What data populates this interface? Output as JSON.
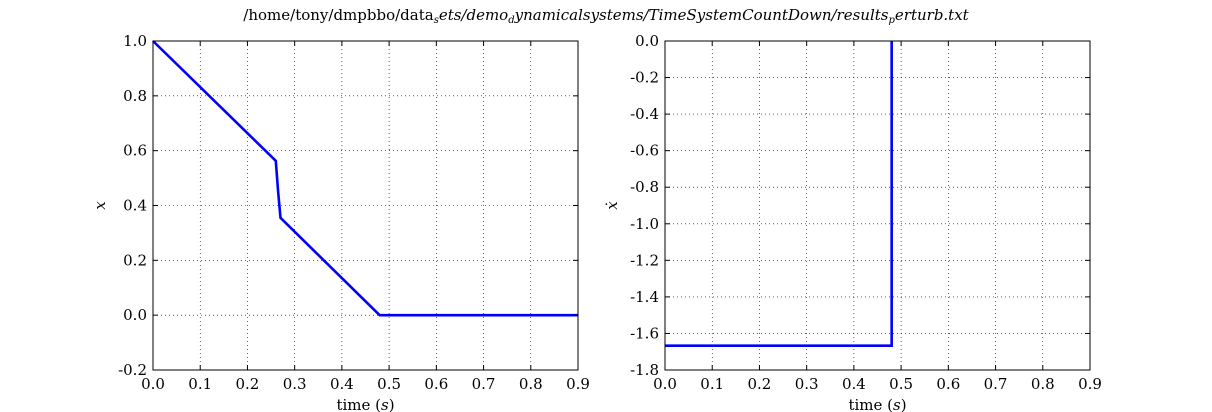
{
  "figure": {
    "title_prefix": "/home/tony/dmpbbo/data",
    "title_subscript1": "s",
    "title_middle": "ets/demo",
    "title_subscript2": "d",
    "title_suffix": "ynamicalsystems/TimeSystemCountDown/results",
    "title_subscript3": "p",
    "title_end": "erturb.txt"
  },
  "colors": {
    "line": "#0000ff",
    "grid": "#000000",
    "axes": "#000000"
  },
  "chart_data": [
    {
      "type": "line",
      "xlabel_text": "time (",
      "xlabel_math": "s",
      "xlabel_close": ")",
      "ylabel": "x",
      "xlim": [
        0.0,
        0.9
      ],
      "ylim": [
        -0.2,
        1.0
      ],
      "xticks": [
        0.0,
        0.1,
        0.2,
        0.3,
        0.4,
        0.5,
        0.6,
        0.7,
        0.8,
        0.9
      ],
      "yticks": [
        -0.2,
        0.0,
        0.2,
        0.4,
        0.6,
        0.8,
        1.0
      ],
      "xtick_labels": [
        "0.0",
        "0.1",
        "0.2",
        "0.3",
        "0.4",
        "0.5",
        "0.6",
        "0.7",
        "0.8",
        "0.9"
      ],
      "ytick_labels": [
        "-0.2",
        "0.0",
        "0.2",
        "0.4",
        "0.6",
        "0.8",
        "1.0"
      ],
      "grid": true,
      "series": [
        {
          "x": [
            0.0,
            0.26,
            0.265,
            0.27,
            0.48,
            0.9
          ],
          "y": [
            1.0,
            0.563,
            0.45,
            0.355,
            0.0,
            0.0
          ]
        }
      ]
    },
    {
      "type": "line",
      "xlabel_text": "time (",
      "xlabel_math": "s",
      "xlabel_close": ")",
      "ylabel": "ẋ",
      "xlim": [
        0.0,
        0.9
      ],
      "ylim": [
        -1.8,
        0.0
      ],
      "xticks": [
        0.0,
        0.1,
        0.2,
        0.3,
        0.4,
        0.5,
        0.6,
        0.7,
        0.8,
        0.9
      ],
      "yticks": [
        -1.8,
        -1.6,
        -1.4,
        -1.2,
        -1.0,
        -0.8,
        -0.6,
        -0.4,
        -0.2,
        0.0
      ],
      "xtick_labels": [
        "0.0",
        "0.1",
        "0.2",
        "0.3",
        "0.4",
        "0.5",
        "0.6",
        "0.7",
        "0.8",
        "0.9"
      ],
      "ytick_labels": [
        "-1.8",
        "-1.6",
        "-1.4",
        "-1.2",
        "-1.0",
        "-0.8",
        "-0.6",
        "-0.4",
        "-0.2",
        "0.0"
      ],
      "grid": true,
      "series": [
        {
          "x": [
            0.0,
            0.48,
            0.48,
            0.48
          ],
          "y": [
            -1.667,
            -1.667,
            -0.8,
            0.0
          ]
        }
      ]
    }
  ]
}
